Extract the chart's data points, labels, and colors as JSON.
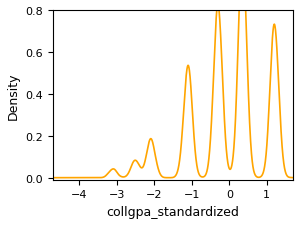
{
  "line_color": "#FFA500",
  "xlabel": "collgpa_standardized",
  "ylabel": "Density",
  "xlim": [
    -4.7,
    1.7
  ],
  "ylim": [
    -0.01,
    0.8
  ],
  "background_color": "#ffffff",
  "figsize": [
    3.0,
    2.26
  ],
  "dpi": 100,
  "seed": 42,
  "peaks": [
    -3.1,
    -2.5,
    -2.1,
    -1.1,
    -0.3,
    0.35,
    1.2
  ],
  "weights": [
    0.012,
    0.025,
    0.055,
    0.16,
    0.25,
    0.32,
    0.22
  ],
  "bandwidth": 0.1
}
